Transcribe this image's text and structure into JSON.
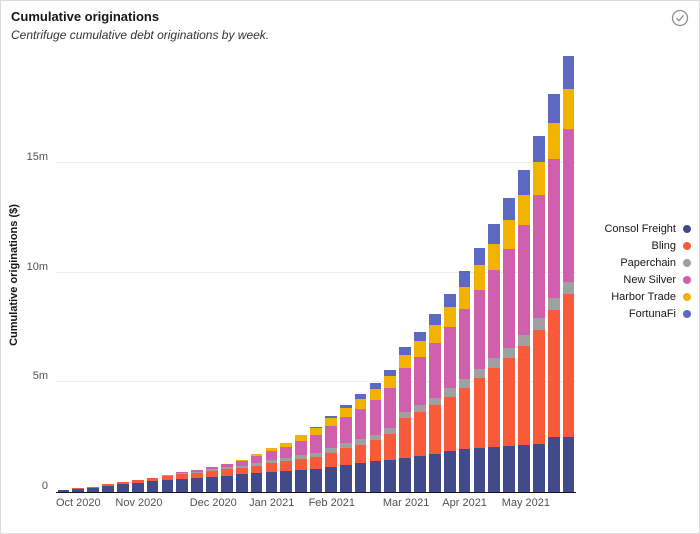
{
  "header": {
    "title": "Cumulative originations",
    "subtitle": "Centrifuge cumulative debt originations by week.",
    "status_icon": "check-circle-icon"
  },
  "chart_data": {
    "type": "bar",
    "stacked": true,
    "title": "Cumulative originations",
    "subtitle": "Centrifuge cumulative debt originations by week.",
    "xlabel": "",
    "ylabel": "Cumulative originations ($)",
    "unit": "millions USD",
    "grid": true,
    "legend_position": "right",
    "weeks": 35,
    "ylim_m": [
      0,
      20
    ],
    "y_tick_values_m": [
      0,
      5,
      10,
      15
    ],
    "y_tick_labels": [
      "0",
      "5m",
      "10m",
      "15m"
    ],
    "x_tick_labels": [
      "Oct 2020",
      "Nov 2020",
      "Dec 2020",
      "Jan 2021",
      "Feb 2021",
      "Mar 2021",
      "Apr 2021",
      "May 2021"
    ],
    "x_tick_week_index": [
      0,
      4,
      9,
      13,
      17,
      22,
      26,
      30
    ],
    "series": [
      {
        "name": "Consol Freight",
        "color": "#414b8c",
        "values": [
          0.1,
          0.15,
          0.2,
          0.28,
          0.35,
          0.42,
          0.5,
          0.55,
          0.6,
          0.65,
          0.7,
          0.75,
          0.8,
          0.85,
          0.9,
          0.95,
          1.0,
          1.05,
          1.15,
          1.25,
          1.3,
          1.4,
          1.45,
          1.55,
          1.65,
          1.75,
          1.85,
          1.95,
          2.0,
          2.05,
          2.1,
          2.15,
          2.2,
          2.5,
          2.5
        ]
      },
      {
        "name": "Bling",
        "color": "#f85a3a",
        "values": [
          0,
          0.02,
          0.05,
          0.08,
          0.1,
          0.12,
          0.15,
          0.18,
          0.2,
          0.22,
          0.25,
          0.28,
          0.3,
          0.35,
          0.4,
          0.45,
          0.5,
          0.55,
          0.65,
          0.75,
          0.85,
          0.95,
          1.2,
          1.8,
          2.0,
          2.2,
          2.5,
          2.8,
          3.2,
          3.6,
          4.0,
          4.5,
          5.2,
          5.8,
          6.5
        ]
      },
      {
        "name": "Paperchain",
        "color": "#a0a0a0",
        "values": [
          0,
          0,
          0,
          0,
          0,
          0,
          0,
          0.02,
          0.05,
          0.05,
          0.08,
          0.1,
          0.1,
          0.12,
          0.15,
          0.15,
          0.18,
          0.2,
          0.2,
          0.22,
          0.25,
          0.25,
          0.28,
          0.3,
          0.32,
          0.35,
          0.38,
          0.4,
          0.42,
          0.45,
          0.48,
          0.5,
          0.52,
          0.55,
          0.55
        ]
      },
      {
        "name": "New Silver",
        "color": "#d05fae",
        "values": [
          0,
          0,
          0,
          0,
          0,
          0,
          0,
          0,
          0.05,
          0.08,
          0.1,
          0.15,
          0.2,
          0.3,
          0.4,
          0.5,
          0.65,
          0.8,
          1.0,
          1.2,
          1.4,
          1.6,
          1.8,
          2.0,
          2.2,
          2.5,
          2.8,
          3.2,
          3.6,
          4.0,
          4.5,
          5.0,
          5.6,
          6.3,
          7.0
        ]
      },
      {
        "name": "Harbor Trade",
        "color": "#f0b400",
        "values": [
          0,
          0,
          0,
          0,
          0,
          0,
          0,
          0,
          0,
          0,
          0,
          0,
          0.05,
          0.1,
          0.15,
          0.2,
          0.25,
          0.3,
          0.35,
          0.4,
          0.45,
          0.5,
          0.55,
          0.6,
          0.7,
          0.8,
          0.9,
          1.0,
          1.1,
          1.2,
          1.3,
          1.4,
          1.5,
          1.65,
          1.8
        ]
      },
      {
        "name": "FortunaFi",
        "color": "#5b69c2",
        "values": [
          0,
          0,
          0,
          0,
          0,
          0,
          0,
          0,
          0,
          0,
          0,
          0,
          0,
          0,
          0,
          0,
          0,
          0.05,
          0.1,
          0.15,
          0.2,
          0.25,
          0.3,
          0.35,
          0.4,
          0.5,
          0.6,
          0.7,
          0.8,
          0.9,
          1.0,
          1.1,
          1.2,
          1.35,
          1.5
        ]
      }
    ]
  },
  "legend": {
    "items": [
      {
        "label": "Consol Freight",
        "color": "#414b8c"
      },
      {
        "label": "Bling",
        "color": "#f85a3a"
      },
      {
        "label": "Paperchain",
        "color": "#a0a0a0"
      },
      {
        "label": "New Silver",
        "color": "#d05fae"
      },
      {
        "label": "Harbor Trade",
        "color": "#f0b400"
      },
      {
        "label": "FortunaFi",
        "color": "#5b69c2"
      }
    ]
  }
}
